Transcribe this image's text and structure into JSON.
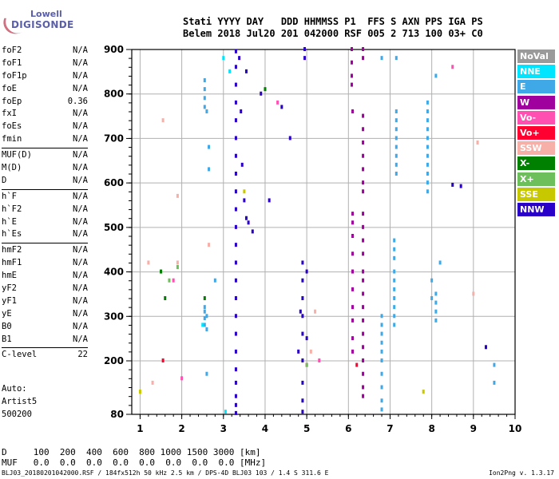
{
  "logo": {
    "line1": "Lowell",
    "line2": "DIGISONDE"
  },
  "header": {
    "line1": "Stati YYYY DAY   DDD HHMMSS P1  FFS S AXN PPS IGA PS",
    "line2": "Belem 2018 Jul20 201 042000 RSF 005 2 713 100 03+ C0"
  },
  "params": [
    [
      {
        "name": "foF2",
        "value": "N/A"
      },
      {
        "name": "foF1",
        "value": "N/A"
      },
      {
        "name": "foF1p",
        "value": "N/A"
      },
      {
        "name": "foE",
        "value": "N/A"
      },
      {
        "name": "foEp",
        "value": "0.36"
      },
      {
        "name": "fxI",
        "value": "N/A"
      },
      {
        "name": "foEs",
        "value": "N/A"
      },
      {
        "name": "fmin",
        "value": "N/A"
      }
    ],
    [
      {
        "name": "MUF(D)",
        "value": "N/A"
      },
      {
        "name": "M(D)",
        "value": "N/A"
      },
      {
        "name": "D",
        "value": "N/A"
      }
    ],
    [
      {
        "name": "h`F",
        "value": "N/A"
      },
      {
        "name": "h`F2",
        "value": "N/A"
      },
      {
        "name": "h`E",
        "value": "N/A"
      },
      {
        "name": "h`Es",
        "value": "N/A"
      }
    ],
    [
      {
        "name": "hmF2",
        "value": "N/A"
      },
      {
        "name": "hmF1",
        "value": "N/A"
      },
      {
        "name": "hmE",
        "value": "N/A"
      },
      {
        "name": "yF2",
        "value": "N/A"
      },
      {
        "name": "yF1",
        "value": "N/A"
      },
      {
        "name": "yE",
        "value": "N/A"
      },
      {
        "name": "B0",
        "value": "N/A"
      },
      {
        "name": "B1",
        "value": "N/A"
      }
    ],
    [
      {
        "name": "C-level",
        "value": "22"
      }
    ]
  ],
  "auto": [
    "Auto:",
    "Artist5",
    "500200"
  ],
  "legend": [
    {
      "label": "NoVal",
      "color": "#9a9a9a"
    },
    {
      "label": "NNE",
      "color": "#00e5ff"
    },
    {
      "label": "E",
      "color": "#3fa9e8"
    },
    {
      "label": "W",
      "color": "#a0009e"
    },
    {
      "label": "Vo-",
      "color": "#ff4fb0"
    },
    {
      "label": "Vo+",
      "color": "#ff0030"
    },
    {
      "label": "SSW",
      "color": "#f6b0a8"
    },
    {
      "label": "X-",
      "color": "#008000"
    },
    {
      "label": "X+",
      "color": "#6cbf5a"
    },
    {
      "label": "SSE",
      "color": "#c8c800"
    },
    {
      "label": "NNW",
      "color": "#2a00c8"
    }
  ],
  "bottom": {
    "d_line": "D     100  200  400  600  800 1000 1500 3000 [km]",
    "muf_line": "MUF   0.0  0.0  0.0  0.0  0.0  0.0  0.0  0.0 [MHz]"
  },
  "footer": {
    "left": "BLJ03_20180201042000.RSF / 184fx512h 50 kHz 2.5 km / DPS-4D BLJ03 103 / 1.4 S 311.6 E",
    "right": "Ion2Png v. 1.3.17"
  },
  "chart_data": {
    "type": "scatter",
    "xlim": [
      0.8,
      10
    ],
    "ylim": [
      80,
      900
    ],
    "x_ticks": [
      1,
      2,
      3,
      4,
      5,
      6,
      7,
      8,
      9,
      10
    ],
    "y_ticks": [
      80,
      200,
      300,
      400,
      500,
      600,
      700,
      800,
      900
    ],
    "grid": true,
    "series": [
      {
        "name": "NNW",
        "color": "#2a00c8",
        "points": [
          [
            3.3,
            82
          ],
          [
            3.3,
            100
          ],
          [
            3.3,
            120
          ],
          [
            3.3,
            150
          ],
          [
            3.3,
            180
          ],
          [
            3.3,
            220
          ],
          [
            3.3,
            260
          ],
          [
            3.3,
            300
          ],
          [
            3.3,
            340
          ],
          [
            3.3,
            380
          ],
          [
            3.3,
            420
          ],
          [
            3.3,
            460
          ],
          [
            3.3,
            500
          ],
          [
            3.3,
            540
          ],
          [
            3.3,
            580
          ],
          [
            3.3,
            620
          ],
          [
            3.3,
            660
          ],
          [
            3.3,
            700
          ],
          [
            3.3,
            740
          ],
          [
            3.3,
            780
          ],
          [
            3.3,
            820
          ],
          [
            3.3,
            860
          ],
          [
            3.3,
            895
          ],
          [
            3.38,
            880
          ],
          [
            3.42,
            760
          ],
          [
            3.45,
            640
          ],
          [
            3.5,
            560
          ],
          [
            3.55,
            520
          ],
          [
            3.6,
            510
          ],
          [
            3.7,
            490
          ],
          [
            3.9,
            800
          ],
          [
            4.1,
            560
          ],
          [
            4.4,
            770
          ],
          [
            4.6,
            700
          ],
          [
            3.55,
            850
          ],
          [
            4.9,
            85
          ],
          [
            4.9,
            110
          ],
          [
            4.9,
            150
          ],
          [
            4.9,
            200
          ],
          [
            4.9,
            260
          ],
          [
            4.9,
            300
          ],
          [
            4.9,
            340
          ],
          [
            4.9,
            380
          ],
          [
            4.9,
            420
          ],
          [
            4.95,
            900
          ],
          [
            4.95,
            880
          ],
          [
            4.8,
            220
          ],
          [
            5.0,
            250
          ],
          [
            5.0,
            400
          ],
          [
            4.85,
            310
          ],
          [
            8.5,
            595
          ],
          [
            8.7,
            592
          ],
          [
            9.3,
            230
          ]
        ]
      },
      {
        "name": "W",
        "color": "#a0009e",
        "points": [
          [
            6.08,
            900
          ],
          [
            6.08,
            870
          ],
          [
            6.08,
            840
          ],
          [
            6.08,
            820
          ],
          [
            6.1,
            760
          ],
          [
            6.1,
            530
          ],
          [
            6.1,
            510
          ],
          [
            6.1,
            480
          ],
          [
            6.1,
            440
          ],
          [
            6.1,
            400
          ],
          [
            6.1,
            360
          ],
          [
            6.1,
            320
          ],
          [
            6.1,
            290
          ],
          [
            6.1,
            250
          ],
          [
            6.1,
            220
          ],
          [
            6.35,
            900
          ],
          [
            6.35,
            880
          ],
          [
            6.35,
            750
          ],
          [
            6.35,
            720
          ],
          [
            6.35,
            690
          ],
          [
            6.35,
            660
          ],
          [
            6.35,
            630
          ],
          [
            6.35,
            600
          ],
          [
            6.35,
            580
          ],
          [
            6.35,
            530
          ],
          [
            6.35,
            500
          ],
          [
            6.35,
            470
          ],
          [
            6.35,
            440
          ],
          [
            6.35,
            400
          ],
          [
            6.35,
            380
          ],
          [
            6.35,
            350
          ],
          [
            6.35,
            320
          ],
          [
            6.35,
            290
          ],
          [
            6.35,
            260
          ],
          [
            6.35,
            230
          ],
          [
            6.35,
            200
          ],
          [
            6.35,
            170
          ],
          [
            6.35,
            140
          ],
          [
            6.35,
            120
          ]
        ]
      },
      {
        "name": "E",
        "color": "#3fa9e8",
        "points": [
          [
            2.55,
            830
          ],
          [
            2.55,
            810
          ],
          [
            2.55,
            790
          ],
          [
            2.55,
            770
          ],
          [
            2.6,
            760
          ],
          [
            2.55,
            320
          ],
          [
            2.55,
            310
          ],
          [
            2.55,
            295
          ],
          [
            2.55,
            280
          ],
          [
            2.6,
            300
          ],
          [
            2.6,
            270
          ],
          [
            2.65,
            630
          ],
          [
            2.65,
            680
          ],
          [
            7.1,
            470
          ],
          [
            7.1,
            450
          ],
          [
            7.1,
            430
          ],
          [
            7.1,
            400
          ],
          [
            7.1,
            380
          ],
          [
            7.1,
            360
          ],
          [
            7.1,
            340
          ],
          [
            7.1,
            320
          ],
          [
            7.1,
            300
          ],
          [
            7.1,
            280
          ],
          [
            7.15,
            880
          ],
          [
            7.15,
            760
          ],
          [
            7.15,
            740
          ],
          [
            7.15,
            720
          ],
          [
            7.15,
            700
          ],
          [
            7.15,
            680
          ],
          [
            7.15,
            660
          ],
          [
            7.15,
            640
          ],
          [
            7.15,
            620
          ],
          [
            6.8,
            300
          ],
          [
            6.8,
            280
          ],
          [
            6.8,
            260
          ],
          [
            6.8,
            240
          ],
          [
            6.8,
            220
          ],
          [
            6.8,
            200
          ],
          [
            6.8,
            170
          ],
          [
            6.8,
            140
          ],
          [
            6.8,
            110
          ],
          [
            6.8,
            90
          ],
          [
            6.8,
            880
          ],
          [
            7.9,
            780
          ],
          [
            7.9,
            760
          ],
          [
            7.9,
            740
          ],
          [
            7.9,
            720
          ],
          [
            7.9,
            700
          ],
          [
            7.9,
            680
          ],
          [
            7.9,
            660
          ],
          [
            7.9,
            640
          ],
          [
            7.9,
            620
          ],
          [
            7.9,
            600
          ],
          [
            7.9,
            580
          ],
          [
            8.1,
            350
          ],
          [
            8.1,
            330
          ],
          [
            8.1,
            310
          ],
          [
            8.1,
            290
          ],
          [
            8.0,
            380
          ],
          [
            8.0,
            340
          ],
          [
            8.2,
            420
          ],
          [
            8.1,
            840
          ],
          [
            9.5,
            190
          ],
          [
            9.5,
            150
          ],
          [
            2.8,
            380
          ],
          [
            2.6,
            170
          ]
        ]
      },
      {
        "name": "NNE",
        "color": "#00e5ff",
        "points": [
          [
            3.05,
            85
          ],
          [
            3.15,
            850
          ],
          [
            3.0,
            880
          ],
          [
            2.5,
            280
          ]
        ]
      },
      {
        "name": "SSW",
        "color": "#f6b0a8",
        "points": [
          [
            1.55,
            740
          ],
          [
            1.9,
            570
          ],
          [
            1.9,
            420
          ],
          [
            2.65,
            460
          ],
          [
            5.1,
            220
          ],
          [
            5.2,
            310
          ],
          [
            9.1,
            690
          ],
          [
            9.0,
            350
          ],
          [
            1.3,
            150
          ],
          [
            1.2,
            420
          ]
        ]
      },
      {
        "name": "Vo-",
        "color": "#ff4fb0",
        "points": [
          [
            4.3,
            780
          ],
          [
            1.8,
            380
          ],
          [
            2.0,
            160
          ],
          [
            5.3,
            200
          ],
          [
            8.5,
            860
          ]
        ]
      },
      {
        "name": "Vo+",
        "color": "#ff0030",
        "points": [
          [
            1.55,
            200
          ],
          [
            5.0,
            190
          ],
          [
            6.2,
            190
          ]
        ]
      },
      {
        "name": "X-",
        "color": "#008000",
        "points": [
          [
            1.5,
            400
          ],
          [
            1.6,
            340
          ],
          [
            2.55,
            340
          ],
          [
            4.0,
            810
          ]
        ]
      },
      {
        "name": "X+",
        "color": "#6cbf5a",
        "points": [
          [
            1.7,
            380
          ],
          [
            1.9,
            410
          ],
          [
            5.0,
            190
          ]
        ]
      },
      {
        "name": "SSE",
        "color": "#c8c800",
        "points": [
          [
            3.5,
            580
          ],
          [
            1.0,
            130
          ],
          [
            7.8,
            130
          ]
        ]
      }
    ]
  }
}
